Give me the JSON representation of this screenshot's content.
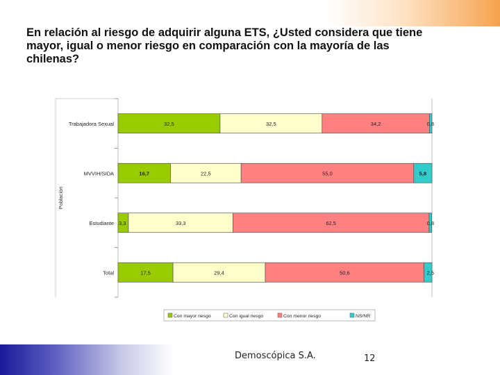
{
  "slide": {
    "title": "En relación al riesgo de adquirir alguna ETS, ¿Usted considera que tiene mayor, igual o menor riesgo en comparación con la mayoría de las chilenas?",
    "footer_company": "Demoscópica S.A.",
    "page_number": "12"
  },
  "chart_data": {
    "type": "bar",
    "orientation": "horizontal",
    "stacked": true,
    "ylabel": "Población",
    "categories": [
      "Trabajadora Sexual",
      "MVVIH/SIDA",
      "Estudiante",
      "Total"
    ],
    "series": [
      {
        "name": "Con mayor riesgo",
        "color": "#99cc00",
        "values": [
          32.5,
          16.7,
          3.3,
          17.5
        ],
        "labels": [
          "32,5",
          "16,7",
          "3,3",
          "17,5"
        ]
      },
      {
        "name": "Con igual riesgo",
        "color": "#ffffcc",
        "values": [
          32.5,
          22.5,
          33.3,
          29.4
        ],
        "labels": [
          "32,5",
          "22,5",
          "33,3",
          "29,4"
        ]
      },
      {
        "name": "Con menor riesgo",
        "color": "#ff8080",
        "values": [
          34.2,
          55.0,
          62.5,
          50.6
        ],
        "labels": [
          "34,2",
          "55,0",
          "62,5",
          "50,6"
        ]
      },
      {
        "name": "NS/NR",
        "color": "#33cccc",
        "values": [
          0.8,
          5.8,
          0.8,
          2.5
        ],
        "labels": [
          "0,8",
          "5,8",
          "0,8",
          "2,5"
        ]
      }
    ],
    "xlim": [
      0,
      100
    ],
    "legend_position": "bottom"
  }
}
